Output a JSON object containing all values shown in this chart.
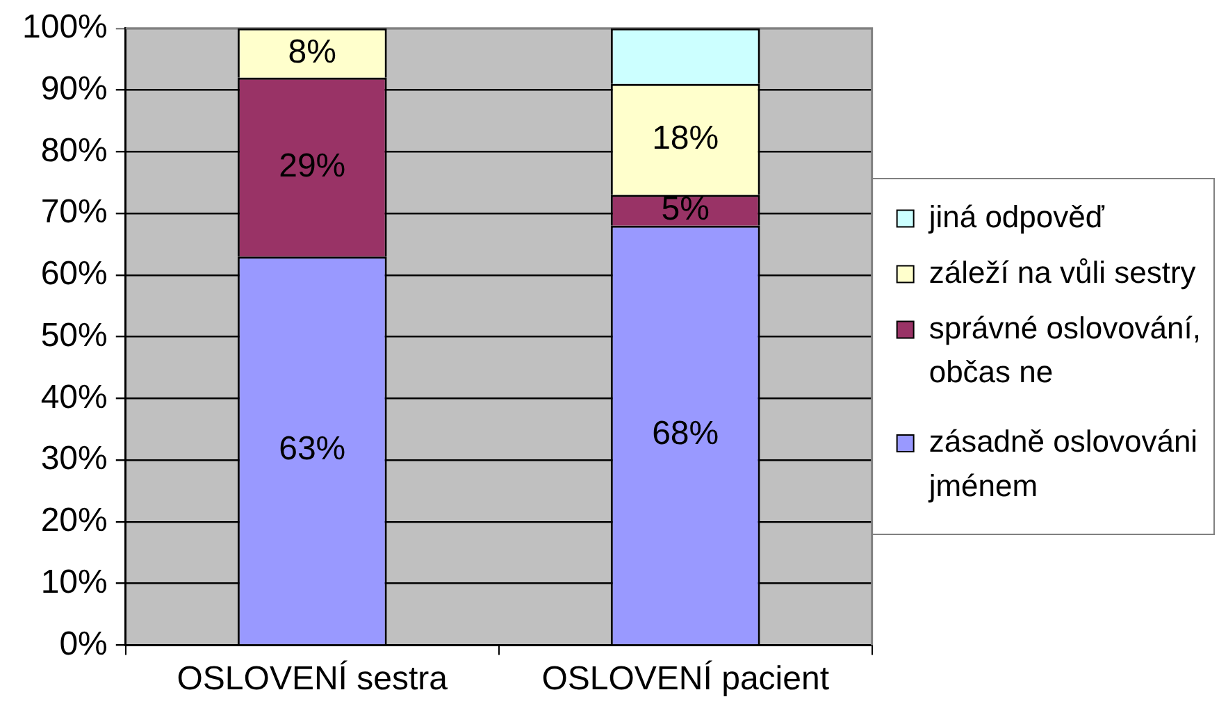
{
  "chart_data": {
    "type": "bar",
    "stacked": true,
    "categories": [
      "OSLOVENÍ sestra",
      "OSLOVENÍ pacient"
    ],
    "series": [
      {
        "name": "zásadně oslovováni jménem",
        "color": "#9999ff",
        "values": [
          63,
          68
        ],
        "value_labels": [
          "63%",
          "68%"
        ]
      },
      {
        "name": "správné oslovování, občas ne",
        "color": "#993366",
        "values": [
          29,
          5
        ],
        "value_labels": [
          "29%",
          "5%"
        ]
      },
      {
        "name": "záleží na vůli sestry",
        "color": "#ffffcc",
        "values": [
          8,
          18
        ],
        "value_labels": [
          "8%",
          "18%"
        ]
      },
      {
        "name": "jiná odpověď",
        "color": "#ccffff",
        "values": [
          0,
          9
        ],
        "value_labels": [
          null,
          null
        ]
      }
    ],
    "ylim": [
      0,
      100
    ],
    "yticks": [
      {
        "value": 0,
        "label": "0%"
      },
      {
        "value": 10,
        "label": "10%"
      },
      {
        "value": 20,
        "label": "20%"
      },
      {
        "value": 30,
        "label": "30%"
      },
      {
        "value": 40,
        "label": "40%"
      },
      {
        "value": 50,
        "label": "50%"
      },
      {
        "value": 60,
        "label": "60%"
      },
      {
        "value": 70,
        "label": "70%"
      },
      {
        "value": 80,
        "label": "80%"
      },
      {
        "value": 90,
        "label": "90%"
      },
      {
        "value": 100,
        "label": "100%"
      }
    ],
    "grid": "y",
    "legend": "right"
  }
}
